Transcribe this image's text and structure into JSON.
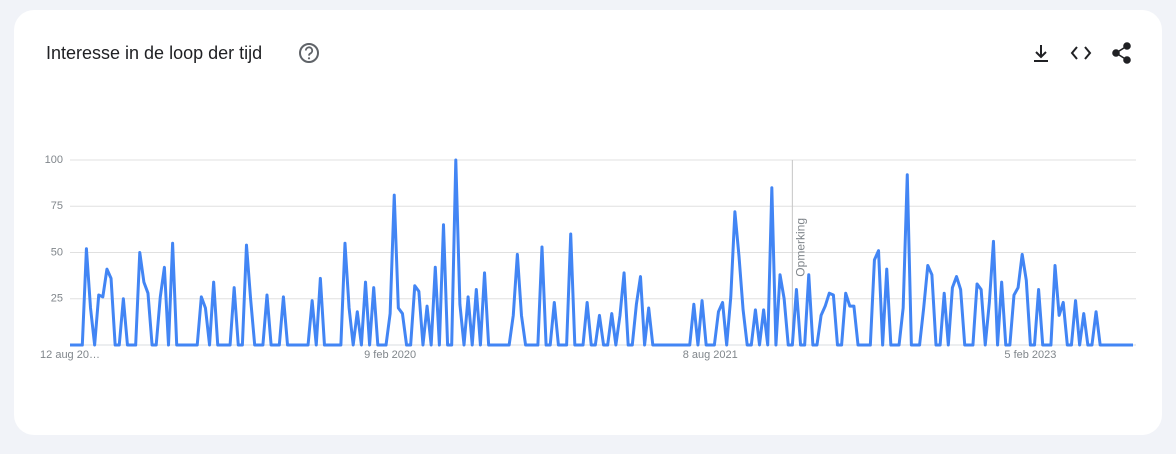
{
  "chart_data": {
    "type": "line",
    "title": "Interesse in de loop der tijd",
    "categories": [
      "12 aug 20…",
      null,
      null,
      null,
      null,
      null,
      null,
      null,
      null,
      null,
      null,
      null,
      null,
      null,
      null,
      null,
      null,
      null,
      null,
      null,
      null,
      null,
      null,
      null,
      null,
      null,
      null,
      null,
      null,
      null,
      null,
      null,
      null,
      null,
      null,
      null,
      null,
      null,
      null,
      null,
      null,
      null,
      null,
      null,
      null,
      null,
      null,
      null,
      null,
      null,
      null,
      null,
      null,
      null,
      null,
      null,
      null,
      null,
      null,
      null,
      null,
      null,
      null,
      null,
      null,
      null,
      null,
      null,
      null,
      null,
      null,
      null,
      null,
      null,
      null,
      null,
      null,
      null,
      "9 feb 2020",
      null,
      null,
      null,
      null,
      null,
      null,
      null,
      null,
      null,
      null,
      null,
      null,
      null,
      null,
      null,
      null,
      null,
      null,
      null,
      null,
      null,
      null,
      null,
      null,
      null,
      null,
      null,
      null,
      null,
      null,
      null,
      null,
      null,
      null,
      null,
      null,
      null,
      null,
      null,
      null,
      null,
      null,
      null,
      null,
      null,
      null,
      null,
      null,
      null,
      null,
      null,
      null,
      null,
      null,
      null,
      null,
      null,
      null,
      null,
      null,
      null,
      null,
      null,
      null,
      null,
      null,
      null,
      null,
      null,
      null,
      null,
      null,
      null,
      null,
      null,
      null,
      null,
      "8 aug 2021",
      null,
      null,
      null,
      null,
      null,
      null,
      null,
      null,
      null,
      null,
      null,
      null,
      null,
      null,
      null,
      null,
      null,
      null,
      null,
      null,
      null,
      null,
      null,
      null,
      null,
      null,
      null,
      null,
      null,
      null,
      null,
      null,
      null,
      null,
      null,
      null,
      null,
      null,
      null,
      null,
      null,
      null,
      null,
      null,
      null,
      null,
      null,
      null,
      null,
      null,
      null,
      null,
      null,
      null,
      null,
      null,
      null,
      null,
      null,
      null,
      null,
      null,
      null,
      null,
      null,
      null,
      null,
      null,
      null,
      null,
      null,
      null,
      null,
      null,
      null,
      null,
      null,
      "5 feb 2023",
      null,
      null,
      null,
      null,
      null,
      null,
      null,
      null,
      null,
      null,
      null,
      null,
      null,
      null,
      null,
      null,
      null,
      null,
      null,
      null,
      null,
      null,
      null,
      null,
      null
    ],
    "values": [
      0,
      0,
      0,
      0,
      52,
      20,
      0,
      27,
      26,
      41,
      36,
      0,
      0,
      25,
      0,
      0,
      0,
      50,
      34,
      28,
      0,
      0,
      26,
      42,
      0,
      55,
      0,
      0,
      0,
      0,
      0,
      0,
      26,
      20,
      0,
      34,
      0,
      0,
      0,
      0,
      31,
      0,
      0,
      54,
      25,
      0,
      0,
      0,
      27,
      0,
      0,
      0,
      26,
      0,
      0,
      0,
      0,
      0,
      0,
      24,
      0,
      36,
      0,
      0,
      0,
      0,
      0,
      55,
      20,
      0,
      18,
      0,
      34,
      0,
      31,
      0,
      0,
      0,
      17,
      81,
      20,
      17,
      0,
      0,
      32,
      29,
      0,
      21,
      0,
      42,
      0,
      65,
      0,
      0,
      100,
      22,
      0,
      26,
      0,
      30,
      0,
      39,
      0,
      0,
      0,
      0,
      0,
      0,
      16,
      49,
      16,
      0,
      0,
      0,
      0,
      53,
      0,
      0,
      23,
      0,
      0,
      0,
      60,
      0,
      0,
      0,
      23,
      0,
      0,
      16,
      0,
      0,
      17,
      0,
      16,
      39,
      0,
      0,
      22,
      37,
      0,
      20,
      0,
      0,
      0,
      0,
      0,
      0,
      0,
      0,
      0,
      0,
      22,
      0,
      24,
      0,
      0,
      0,
      18,
      23,
      0,
      26,
      72,
      48,
      19,
      0,
      0,
      19,
      0,
      19,
      0,
      85,
      0,
      38,
      25,
      0,
      0,
      30,
      0,
      0,
      38,
      0,
      0,
      16,
      21,
      28,
      27,
      0,
      0,
      28,
      21,
      21,
      0,
      0,
      0,
      0,
      46,
      51,
      0,
      41,
      0,
      0,
      0,
      20,
      92,
      0,
      0,
      0,
      20,
      43,
      38,
      0,
      0,
      28,
      0,
      31,
      37,
      30,
      0,
      0,
      0,
      33,
      30,
      0,
      23,
      56,
      0,
      34,
      0,
      0,
      27,
      31,
      49,
      35,
      0,
      0,
      30,
      0,
      0,
      0,
      43,
      16,
      23,
      0,
      0,
      24,
      0,
      17,
      0,
      0,
      18,
      0,
      0,
      0,
      0,
      0,
      0,
      0,
      0,
      0
    ],
    "color": "#4285f4",
    "ylim": [
      0,
      100
    ],
    "yticks": [
      25,
      50,
      75,
      100
    ],
    "grid": true,
    "annotations": [
      {
        "text": "Opmerking",
        "at": 176
      }
    ]
  }
}
